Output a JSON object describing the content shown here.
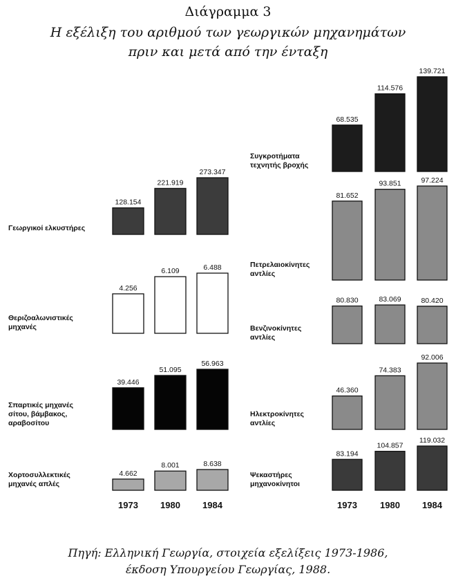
{
  "header": {
    "title": "Διάγραμμα 3",
    "subtitle_line1": "Η εξέλιξη του αριθμού των γεωργικών μηχανημάτων",
    "subtitle_line2": "πριν και μετά από την ένταξη"
  },
  "source": {
    "line1": "Πηγή: Ελληνική Γεωργία, στοιχεία εξελίξεις 1973-1986,",
    "line2": "έκδοση Υπουργείου Γεωργίας, 1988."
  },
  "chart_data": {
    "type": "bar",
    "title": "Διάγραμμα 3",
    "years": [
      "1973",
      "1980",
      "1984"
    ],
    "panels": [
      {
        "side": "left",
        "label": [
          "Γεωργικοί ελκυστήρες"
        ],
        "values": [
          128154,
          221919,
          273347
        ],
        "labels": [
          "128.154",
          "221.919",
          "273.347"
        ],
        "fill": "#3c3c3c"
      },
      {
        "side": "left",
        "label": [
          "Θεριζοαλωνιστικές",
          "μηχανές"
        ],
        "values": [
          4256,
          6109,
          6488
        ],
        "labels": [
          "4.256",
          "6.109",
          "6.488"
        ],
        "fill": "#ffffff"
      },
      {
        "side": "left",
        "label": [
          "Σπαρτικές μηχανές",
          "σίτου, βάμβακος,",
          "αραβοσίτου"
        ],
        "values": [
          39446,
          51095,
          56963
        ],
        "labels": [
          "39.446",
          "51.095",
          "56.963"
        ],
        "fill": "#050505"
      },
      {
        "side": "left",
        "label": [
          "Χορτοσυλλεκτικές",
          "μηχανές απλές"
        ],
        "values": [
          4662,
          8001,
          8638
        ],
        "labels": [
          "4.662",
          "8.001",
          "8.638"
        ],
        "fill": "#a8a8a8"
      },
      {
        "side": "right",
        "label": [
          "Συγκροτήματα",
          "τεχνητής βροχής"
        ],
        "values": [
          68535,
          114576,
          139721
        ],
        "labels": [
          "68.535",
          "114.576",
          "139.721"
        ],
        "fill": "#1c1c1c"
      },
      {
        "side": "right",
        "label": [
          "Πετρελαιοκίνητες",
          "αντλίες"
        ],
        "values": [
          81652,
          93851,
          97224
        ],
        "labels": [
          "81.652",
          "93.851",
          "97.224"
        ],
        "fill": "#8a8a8a"
      },
      {
        "side": "right",
        "label": [
          "Βενζινοκίνητες",
          "αντλίες"
        ],
        "values": [
          80830,
          83069,
          80420
        ],
        "labels": [
          "80.830",
          "83.069",
          "80.420"
        ],
        "fill": "#8a8a8a"
      },
      {
        "side": "right",
        "label": [
          "Ηλεκτροκίνητες",
          "αντλίες"
        ],
        "values": [
          46360,
          74383,
          92006
        ],
        "labels": [
          "46.360",
          "74.383",
          "92.006"
        ],
        "fill": "#8a8a8a"
      },
      {
        "side": "right",
        "label": [
          "Ψεκαστήρες",
          "μηχανοκίνητοι"
        ],
        "values": [
          83194,
          104857,
          119032
        ],
        "labels": [
          "83.194",
          "104.857",
          "119.032"
        ],
        "fill": "#3a3a3a"
      }
    ]
  }
}
